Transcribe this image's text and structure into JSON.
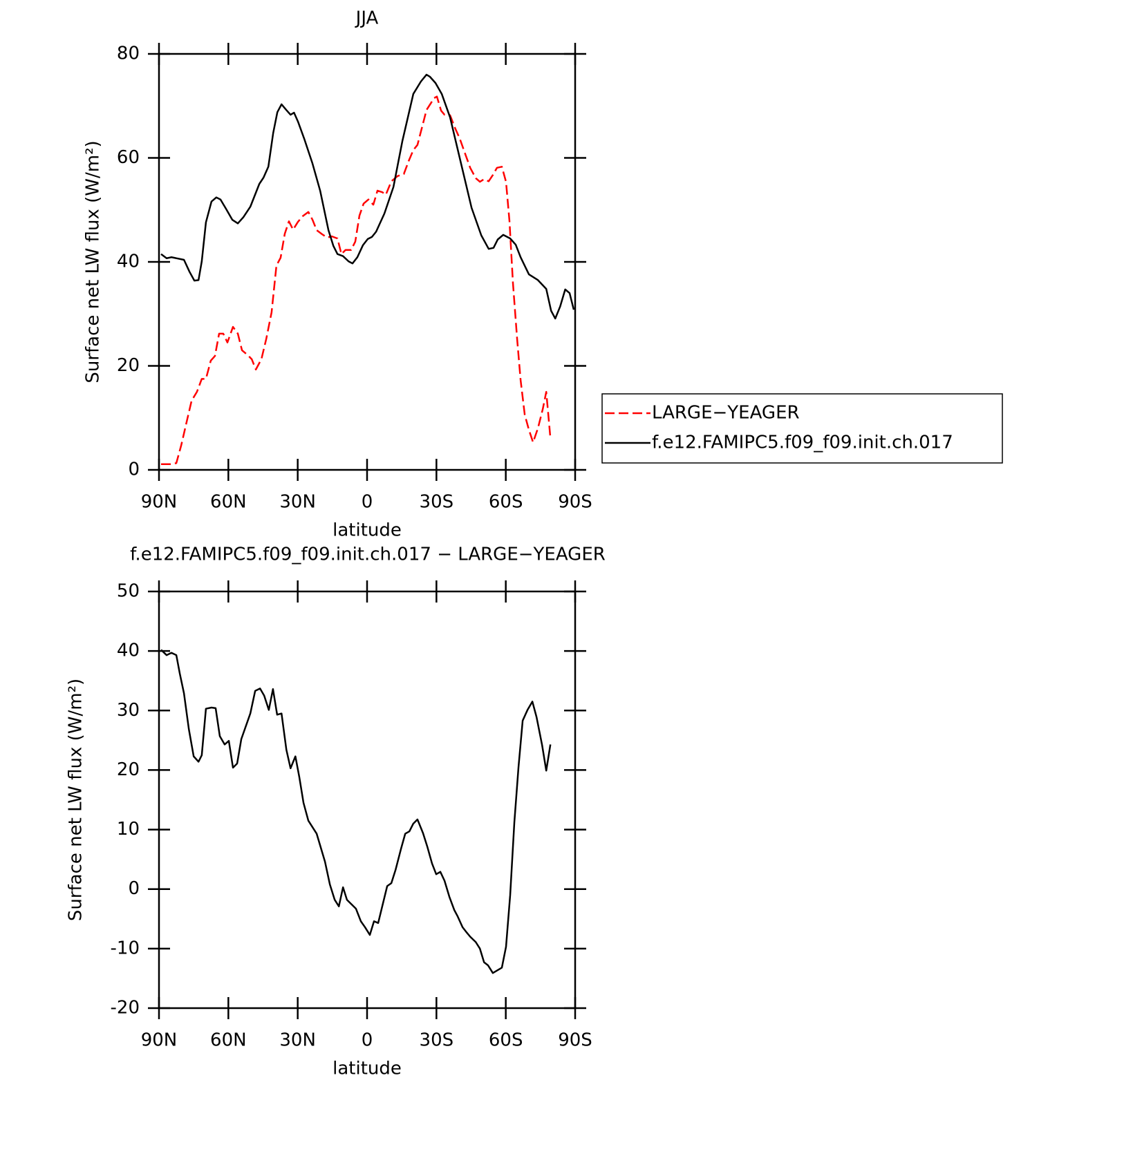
{
  "chart_data": [
    {
      "type": "line",
      "title": "JJA",
      "xlabel": "latitude",
      "ylabel": "Surface net LW flux (W/m²)",
      "xlim": [
        90,
        -90
      ],
      "xticks": [
        {
          "value": 90,
          "label": "90N"
        },
        {
          "value": 60,
          "label": "60N"
        },
        {
          "value": 30,
          "label": "30N"
        },
        0,
        {
          "value": -30,
          "label": "30S"
        },
        {
          "value": -60,
          "label": "60S"
        },
        {
          "value": -90,
          "label": "90S"
        }
      ],
      "ylim": [
        0,
        80
      ],
      "yticks": [
        0,
        20,
        40,
        60,
        80
      ],
      "legend": "outside right",
      "series": [
        {
          "name": "LARGE−YEAGER",
          "color": "#ff0000",
          "dash": true,
          "x": [
            89.1,
            84.6,
            82.5,
            80.4,
            78.0,
            75.9,
            73.6,
            71.5,
            69.7,
            67.6,
            65.8,
            64.0,
            62.2,
            60.4,
            58.0,
            55.9,
            54.1,
            51.7,
            49.9,
            48.1,
            45.7,
            43.6,
            41.3,
            39.2,
            37.4,
            35.6,
            33.8,
            32.0,
            29.9,
            27.8,
            25.4,
            23.6,
            21.8,
            19.4,
            17.3,
            15.2,
            12.8,
            11.1,
            9.3,
            6.9,
            5.1,
            3.3,
            1.5,
            -0.6,
            -2.7,
            -4.5,
            -6.6,
            -8.1,
            -10.5,
            -13.2,
            -15.9,
            -18.0,
            -20.0,
            -21.8,
            -25.7,
            -29.0,
            -30.2,
            -32.0,
            -33.5,
            -35.9,
            -38.0,
            -40.1,
            -42.5,
            -44.6,
            -47.0,
            -48.8,
            -50.6,
            -52.6,
            -54.4,
            -56.2,
            -58.3,
            -60.1,
            -61.6,
            -63.1,
            -64.9,
            -66.4,
            -68.2,
            -70.0,
            -71.8,
            -73.9,
            -76.0,
            -77.5,
            -79.3
          ],
          "values": [
            1.1,
            1.1,
            1.3,
            4.7,
            9.3,
            13.3,
            15.0,
            17.5,
            17.5,
            21.0,
            21.9,
            26.2,
            26.2,
            24.5,
            27.5,
            26.2,
            23.0,
            22.1,
            21.3,
            19.3,
            21.3,
            25.2,
            30.3,
            39.3,
            40.8,
            45.4,
            47.8,
            46.2,
            47.7,
            48.8,
            49.6,
            48.1,
            46.1,
            45.3,
            44.7,
            44.9,
            44.5,
            41.5,
            42.3,
            42.3,
            43.9,
            48.9,
            51.2,
            52.0,
            51.0,
            53.7,
            53.4,
            52.9,
            55.5,
            56.5,
            56.9,
            59.4,
            61.5,
            62.5,
            69.2,
            71.5,
            71.8,
            69.1,
            68.3,
            68.2,
            65.8,
            63.7,
            60.7,
            58.1,
            56.1,
            55.4,
            55.9,
            55.5,
            56.7,
            58.1,
            58.3,
            55.4,
            47.8,
            35.9,
            25.2,
            17.3,
            10.6,
            7.7,
            5.3,
            8.0,
            11.7,
            15.0,
            6.1
          ]
        },
        {
          "name": "f.e12.FAMIPC5.f09_f09.init.ch.017",
          "color": "#000000",
          "dash": false,
          "x": [
            89.1,
            86.7,
            84.6,
            79.2,
            76.8,
            74.7,
            72.9,
            71.5,
            69.7,
            67.3,
            65.2,
            63.4,
            61.0,
            58.3,
            55.9,
            53.5,
            50.5,
            46.6,
            44.8,
            42.7,
            40.6,
            38.8,
            37.0,
            34.9,
            33.1,
            31.6,
            29.9,
            27.2,
            23.6,
            20.3,
            16.7,
            14.6,
            12.8,
            10.4,
            8.0,
            6.3,
            4.2,
            1.8,
            -0.3,
            -2.1,
            -3.9,
            -7.5,
            -11.4,
            -15.3,
            -20.0,
            -23.3,
            -25.7,
            -27.2,
            -29.6,
            -32.3,
            -35.9,
            -41.3,
            -45.2,
            -49.4,
            -52.6,
            -54.7,
            -56.5,
            -58.9,
            -61.9,
            -64.3,
            -66.4,
            -70.0,
            -73.9,
            -77.5,
            -79.6,
            -81.4,
            -83.5,
            -85.7,
            -87.6,
            -89.4
          ],
          "values": [
            41.5,
            40.7,
            40.9,
            40.4,
            38.1,
            36.4,
            36.5,
            40.1,
            47.6,
            51.6,
            52.4,
            52.0,
            50.2,
            48.1,
            47.4,
            48.6,
            50.6,
            55.0,
            56.2,
            58.3,
            64.8,
            68.8,
            70.3,
            69.2,
            68.3,
            68.7,
            67.0,
            63.7,
            58.9,
            53.7,
            46.1,
            43.1,
            41.5,
            41.1,
            40.1,
            39.7,
            40.9,
            43.2,
            44.4,
            44.8,
            45.8,
            49.3,
            54.4,
            63.3,
            72.3,
            74.7,
            76.0,
            75.6,
            74.4,
            72.3,
            67.8,
            57.7,
            50.4,
            45.1,
            42.5,
            42.7,
            44.3,
            45.2,
            44.5,
            43.3,
            40.9,
            37.6,
            36.5,
            34.8,
            30.6,
            29.1,
            31.4,
            34.7,
            34.0,
            30.8
          ]
        }
      ]
    },
    {
      "type": "line",
      "title": "f.e12.FAMIPC5.f09_f09.init.ch.017 − LARGE−YEAGER",
      "xlabel": "latitude",
      "ylabel": "Surface net LW flux (W/m²)",
      "xlim": [
        90,
        -90
      ],
      "xticks": [
        {
          "value": 90,
          "label": "90N"
        },
        {
          "value": 60,
          "label": "60N"
        },
        {
          "value": 30,
          "label": "30N"
        },
        0,
        {
          "value": -30,
          "label": "30S"
        },
        {
          "value": -60,
          "label": "60S"
        },
        {
          "value": -90,
          "label": "90S"
        }
      ],
      "ylim": [
        -20,
        50
      ],
      "yticks": [
        -20,
        -10,
        0,
        10,
        20,
        30,
        40,
        50
      ],
      "series": [
        {
          "color": "#000000",
          "dash": false,
          "x": [
            89.1,
            86.7,
            84.6,
            82.5,
            81.0,
            79.2,
            77.1,
            75.0,
            72.9,
            71.5,
            69.7,
            67.3,
            65.5,
            63.7,
            61.6,
            59.8,
            58.0,
            56.2,
            54.4,
            50.5,
            48.4,
            46.3,
            44.5,
            42.5,
            40.7,
            38.9,
            37.0,
            34.9,
            33.1,
            31.0,
            29.3,
            27.5,
            25.4,
            21.8,
            18.2,
            16.1,
            14.0,
            12.2,
            10.4,
            8.7,
            4.8,
            2.7,
            0.9,
            -1.2,
            -3.0,
            -4.8,
            -8.7,
            -10.5,
            -12.3,
            -14.7,
            -16.5,
            -18.3,
            -20.0,
            -21.8,
            -24.2,
            -26.0,
            -28.1,
            -29.9,
            -31.7,
            -33.5,
            -35.6,
            -37.7,
            -39.2,
            -41.3,
            -43.1,
            -44.6,
            -47.0,
            -48.8,
            -50.6,
            -52.3,
            -54.4,
            -58.3,
            -60.1,
            -61.9,
            -63.7,
            -65.5,
            -67.3,
            -69.4,
            -71.5,
            -73.3,
            -75.7,
            -77.5,
            -79.3
          ],
          "values": [
            40.2,
            39.3,
            39.7,
            39.3,
            36.2,
            32.9,
            26.9,
            22.3,
            21.4,
            22.5,
            30.3,
            30.5,
            30.4,
            25.7,
            24.3,
            24.9,
            20.4,
            21.1,
            25.2,
            29.5,
            33.3,
            33.7,
            32.5,
            30.1,
            33.6,
            29.3,
            29.5,
            23.4,
            20.3,
            22.3,
            18.8,
            14.5,
            11.5,
            9.3,
            4.6,
            0.8,
            -1.8,
            -2.9,
            0.3,
            -1.8,
            -3.3,
            -5.4,
            -6.4,
            -7.7,
            -5.4,
            -5.7,
            0.5,
            1.0,
            3.2,
            6.8,
            9.3,
            9.7,
            11.0,
            11.7,
            9.4,
            7.2,
            4.3,
            2.5,
            2.9,
            1.4,
            -1.3,
            -3.5,
            -4.6,
            -6.4,
            -7.3,
            -8.0,
            -8.9,
            -10.0,
            -12.3,
            -12.8,
            -14.1,
            -13.2,
            -9.7,
            -1.0,
            11.2,
            20.5,
            28.3,
            30.1,
            31.5,
            28.9,
            24.2,
            19.9,
            24.3
          ]
        }
      ]
    }
  ]
}
